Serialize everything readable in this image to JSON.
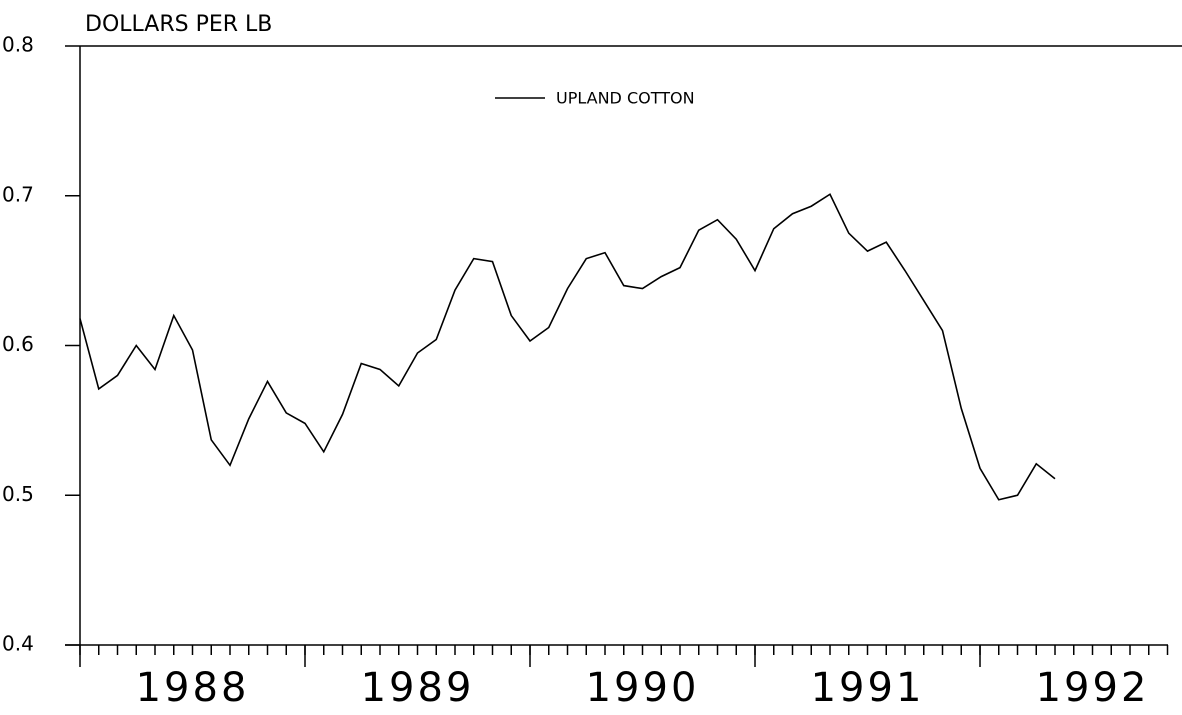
{
  "chart_data": {
    "type": "line",
    "y_label": "DOLLARS PER LB",
    "xlim": [
      1988,
      1992.8333
    ],
    "xticks": [
      1988,
      1989,
      1990,
      1991,
      1992
    ],
    "ylim": [
      0.4,
      0.8
    ],
    "yticks": [
      0.4,
      0.5,
      0.6,
      0.7,
      0.8
    ],
    "series": [
      {
        "name": "UPLAND COTTON",
        "color": "#000000",
        "x": [
          1988,
          1988.0833,
          1988.1667,
          1988.25,
          1988.3333,
          1988.4167,
          1988.5,
          1988.5833,
          1988.6667,
          1988.75,
          1988.8333,
          1988.9167,
          1989,
          1989.0833,
          1989.1667,
          1989.25,
          1989.3333,
          1989.4167,
          1989.5,
          1989.5833,
          1989.6667,
          1989.75,
          1989.8333,
          1989.9167,
          1990,
          1990.0833,
          1990.1667,
          1990.25,
          1990.3333,
          1990.4167,
          1990.5,
          1990.5833,
          1990.6667,
          1990.75,
          1990.8333,
          1990.9167,
          1991,
          1991.0833,
          1991.1667,
          1991.25,
          1991.3333,
          1991.4167,
          1991.5,
          1991.5833,
          1991.6667,
          1991.75,
          1991.8333,
          1991.9167,
          1992,
          1992.0833,
          1992.1667,
          1992.25,
          1992.3333
        ],
        "values": [
          0.618,
          0.571,
          0.58,
          0.6,
          0.584,
          0.62,
          0.597,
          0.537,
          0.52,
          0.551,
          0.576,
          0.555,
          0.548,
          0.529,
          0.554,
          0.588,
          0.584,
          0.573,
          0.595,
          0.604,
          0.637,
          0.658,
          0.656,
          0.62,
          0.603,
          0.612,
          0.638,
          0.658,
          0.662,
          0.64,
          0.638,
          0.646,
          0.652,
          0.677,
          0.684,
          0.671,
          0.65,
          0.678,
          0.688,
          0.693,
          0.701,
          0.675,
          0.663,
          0.669,
          0.65,
          0.63,
          0.61,
          0.558,
          0.518,
          0.497,
          0.5,
          0.521,
          0.511
        ]
      }
    ]
  }
}
